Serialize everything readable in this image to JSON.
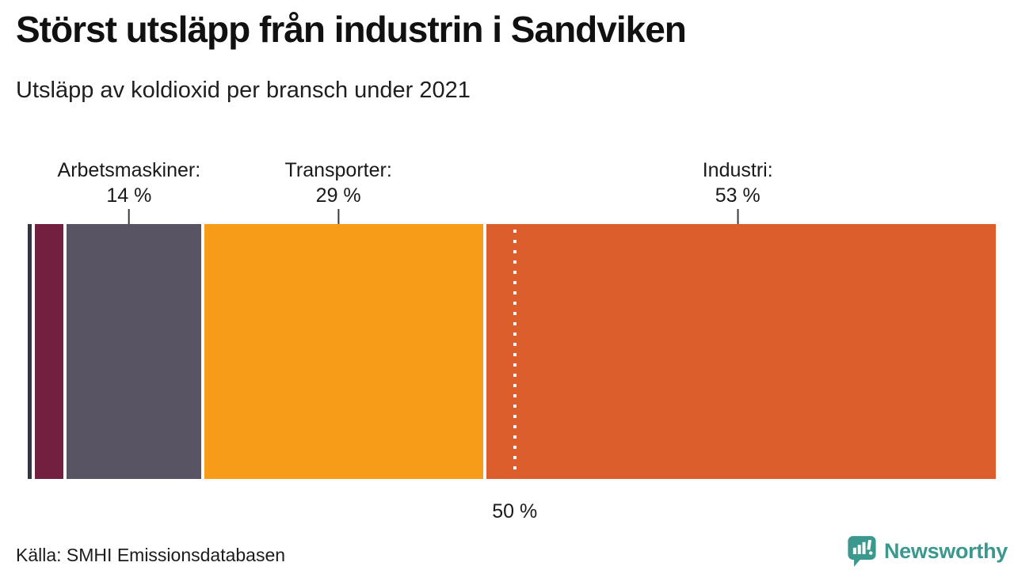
{
  "header": {
    "title": "Störst utsläpp från industrin i Sandviken",
    "subtitle": "Utsläpp av koldioxid per bransch under 2021"
  },
  "footer": {
    "source": "Källa: SMHI Emissionsdatabasen",
    "brand": {
      "name": "Newsworthy",
      "icon": "newsworthy-bar-chart-bubble-icon",
      "color": "#3a988e"
    }
  },
  "colors": {
    "background": "#ffffff",
    "text": "#1a1a1a",
    "tick": "#3a3a3a",
    "separator": "#ffffff"
  },
  "chart_data": {
    "type": "bar",
    "variant": "single-stacked-horizontal",
    "title": "Störst utsläpp från industrin i Sandviken",
    "subtitle": "Utsläpp av koldioxid per bransch under 2021",
    "unit": "%",
    "xlim": [
      0,
      100
    ],
    "grid": false,
    "legend": "none",
    "segments": [
      {
        "name": "unlabeled-small-1",
        "value": 0.4,
        "color": "#343440",
        "label_line1": "",
        "label_line2": ""
      },
      {
        "name": "unlabeled-small-2",
        "value": 3.0,
        "color": "#731f40",
        "label_line1": "",
        "label_line2": ""
      },
      {
        "name": "arbetsmaskiner",
        "value": 14,
        "color": "#585463",
        "label_line1": "Arbetsmaskiner:",
        "label_line2": "14 %"
      },
      {
        "name": "transporter",
        "value": 29,
        "color": "#f69c19",
        "label_line1": "Transporter:",
        "label_line2": "29 %"
      },
      {
        "name": "industri",
        "value": 53,
        "color": "#dc5e2d",
        "label_line1": "Industri:",
        "label_line2": "53 %"
      }
    ],
    "reference_line": {
      "value": 50,
      "label": "50 %",
      "style": "dotted-white-vertical"
    },
    "source": "Källa: SMHI Emissionsdatabasen"
  }
}
